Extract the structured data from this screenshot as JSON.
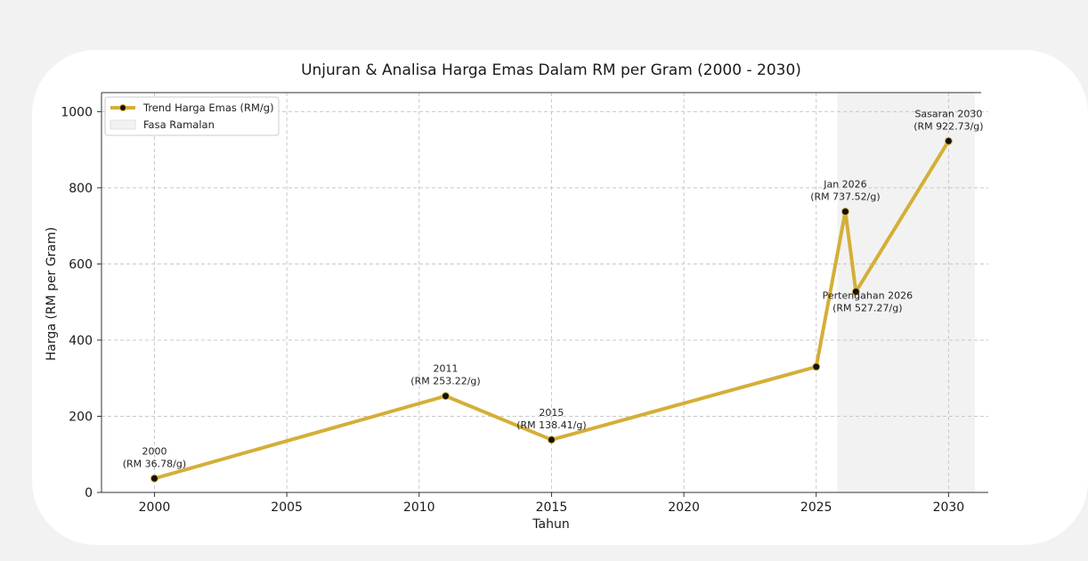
{
  "chart_data": {
    "type": "line",
    "title": "Unjuran & Analisa Harga Emas Dalam RM per Gram (2000 - 2030)",
    "xlabel": "Tahun",
    "ylabel": "Harga (RM per Gram)",
    "xlim": [
      1998.0,
      2031.5
    ],
    "ylim": [
      0,
      1050
    ],
    "xticks": [
      2000,
      2005,
      2010,
      2015,
      2020,
      2025,
      2030
    ],
    "yticks": [
      0,
      200,
      400,
      600,
      800,
      1000
    ],
    "grid": true,
    "legend_position": "top-left",
    "series": [
      {
        "name": "Trend Harga Emas (RM/g)",
        "color": "#d4af37",
        "x": [
          2000,
          2011,
          2015,
          2025,
          2026.1,
          2026.5,
          2030
        ],
        "y": [
          36.78,
          253.22,
          138.41,
          330,
          737.52,
          527.27,
          922.73
        ]
      }
    ],
    "shaded_region": {
      "name": "Fasa Ramalan",
      "x_start": 2025.8,
      "x_end": 2031.0,
      "color": "#f2f2f2"
    },
    "annotations": [
      {
        "x": 2000,
        "y": 36.78,
        "line1": "2000",
        "line2": "(RM 36.78/g)"
      },
      {
        "x": 2011,
        "y": 253.22,
        "line1": "2011",
        "line2": "(RM 253.22/g)"
      },
      {
        "x": 2015,
        "y": 138.41,
        "line1": "2015",
        "line2": "(RM 138.41/g)"
      },
      {
        "x": 2026.1,
        "y": 737.52,
        "line1": "Jan 2026",
        "line2": "(RM 737.52/g)"
      },
      {
        "x": 2026.5,
        "y": 527.27,
        "line1": "Pertengahan 2026",
        "line2": "(RM 527.27/g)",
        "below": true
      },
      {
        "x": 2030,
        "y": 922.73,
        "line1": "Sasaran 2030",
        "line2": "(RM 922.73/g)"
      }
    ]
  }
}
